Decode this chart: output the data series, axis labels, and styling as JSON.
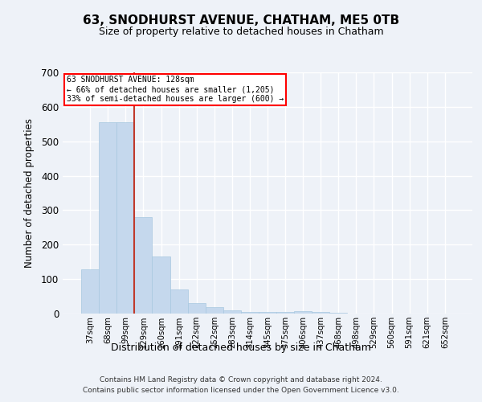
{
  "title": "63, SNODHURST AVENUE, CHATHAM, ME5 0TB",
  "subtitle": "Size of property relative to detached houses in Chatham",
  "xlabel": "Distribution of detached houses by size in Chatham",
  "ylabel": "Number of detached properties",
  "bar_color": "#c5d8ed",
  "bar_edge_color": "#a8c8e0",
  "background_color": "#eef2f8",
  "grid_color": "#ffffff",
  "categories": [
    "37sqm",
    "68sqm",
    "99sqm",
    "129sqm",
    "160sqm",
    "191sqm",
    "222sqm",
    "252sqm",
    "283sqm",
    "314sqm",
    "345sqm",
    "375sqm",
    "406sqm",
    "437sqm",
    "468sqm",
    "498sqm",
    "529sqm",
    "560sqm",
    "591sqm",
    "621sqm",
    "652sqm"
  ],
  "values": [
    128,
    555,
    555,
    280,
    165,
    70,
    30,
    18,
    10,
    5,
    5,
    5,
    8,
    5,
    2,
    1,
    1,
    1,
    0,
    0,
    0
  ],
  "property_line_x": 2.5,
  "property_label": "63 SNODHURST AVENUE: 128sqm",
  "annotation_line1": "← 66% of detached houses are smaller (1,205)",
  "annotation_line2": "33% of semi-detached houses are larger (600) →",
  "annotation_box_color": "white",
  "annotation_box_edge_color": "red",
  "vline_color": "#c0392b",
  "footer_line1": "Contains HM Land Registry data © Crown copyright and database right 2024.",
  "footer_line2": "Contains public sector information licensed under the Open Government Licence v3.0.",
  "ylim": [
    0,
    700
  ],
  "yticks": [
    0,
    100,
    200,
    300,
    400,
    500,
    600,
    700
  ]
}
